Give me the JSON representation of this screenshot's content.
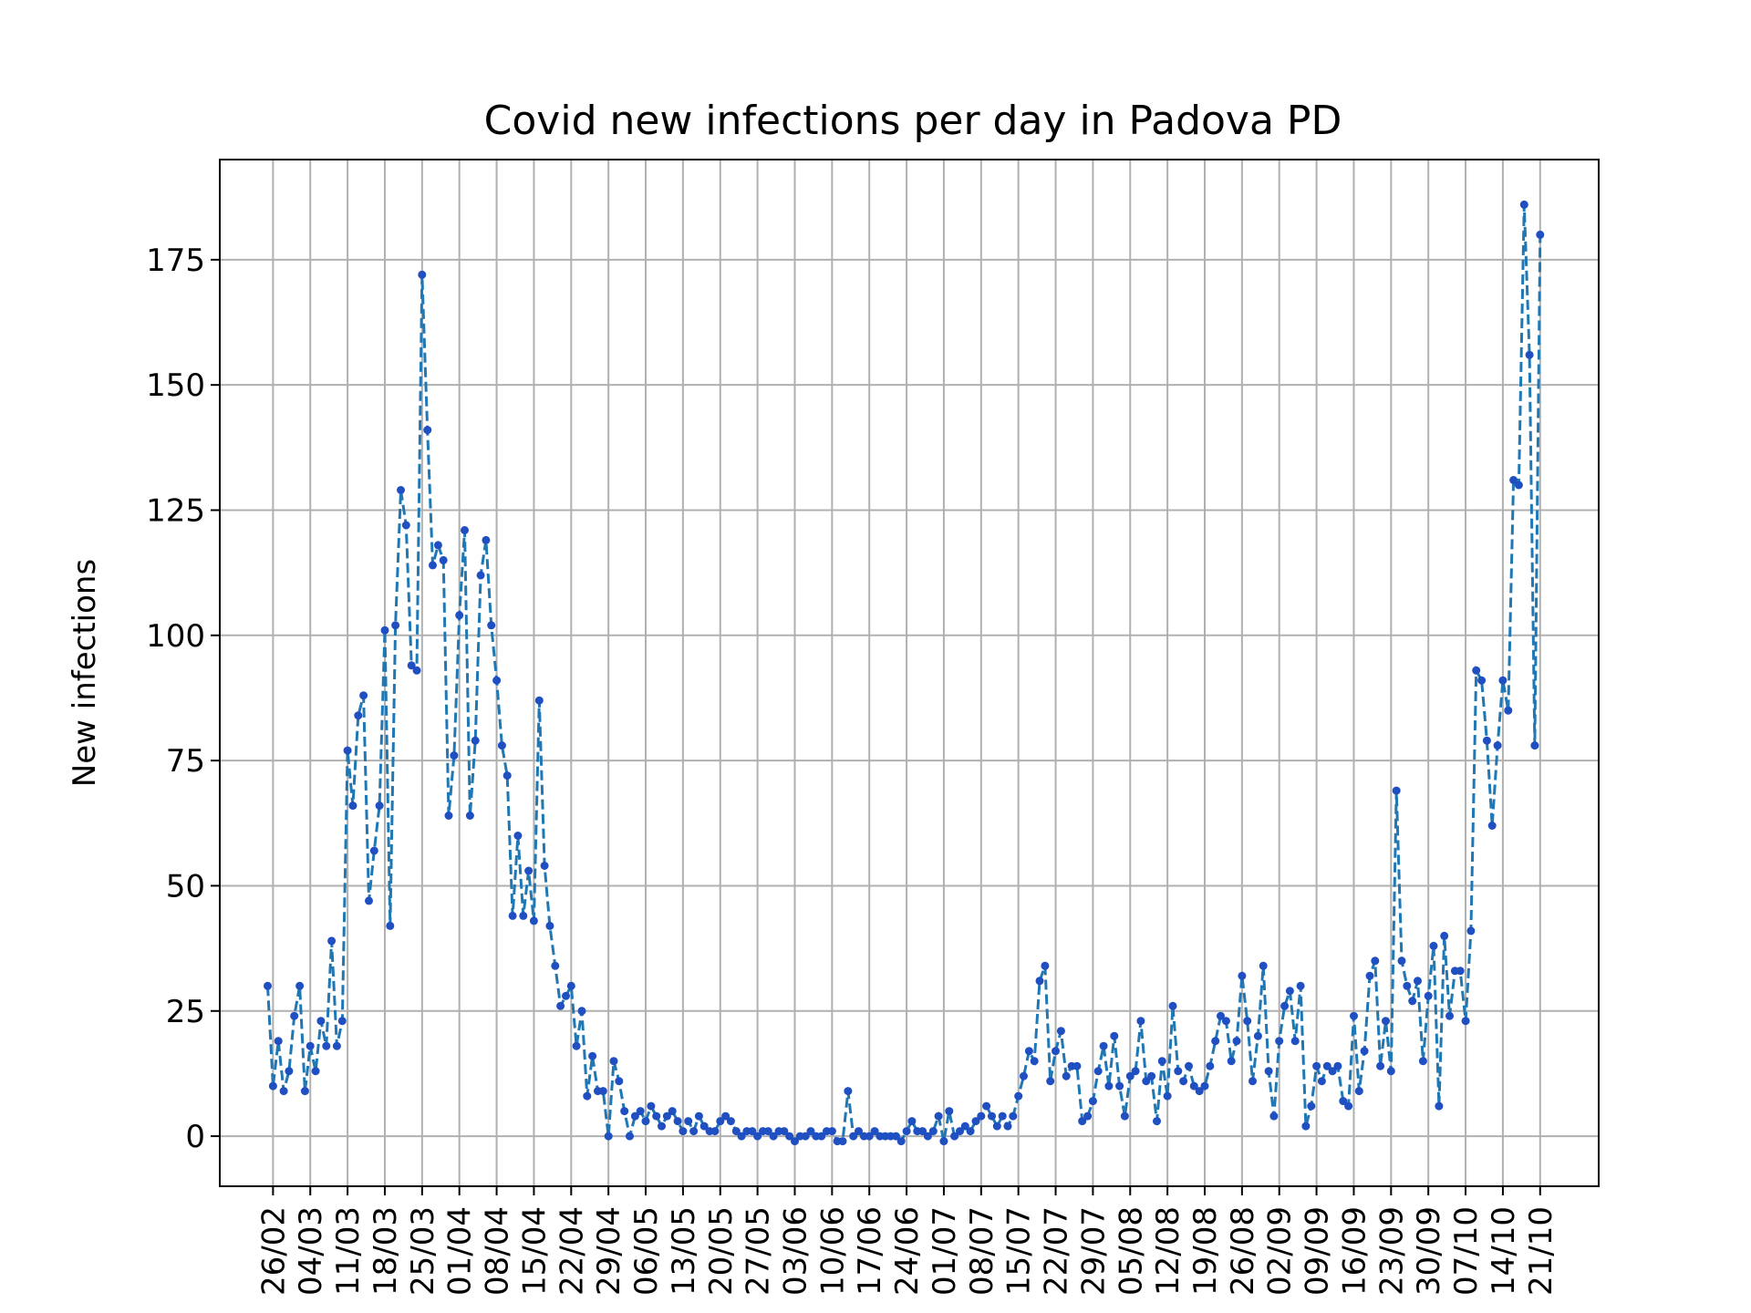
{
  "chart_data": {
    "type": "line",
    "title": "Covid new infections per day in Padova PD",
    "xlabel": "",
    "ylabel": "New infections",
    "ylim": [
      -10,
      195
    ],
    "yticks": [
      0,
      25,
      50,
      75,
      100,
      125,
      150,
      175
    ],
    "xlim": [
      "2020-02-16",
      "2020-11-01"
    ],
    "grid": true,
    "xticks": [
      {
        "date": "2020-02-26",
        "label": "26/02"
      },
      {
        "date": "2020-03-04",
        "label": "04/03"
      },
      {
        "date": "2020-03-11",
        "label": "11/03"
      },
      {
        "date": "2020-03-18",
        "label": "18/03"
      },
      {
        "date": "2020-03-25",
        "label": "25/03"
      },
      {
        "date": "2020-04-01",
        "label": "01/04"
      },
      {
        "date": "2020-04-08",
        "label": "08/04"
      },
      {
        "date": "2020-04-15",
        "label": "15/04"
      },
      {
        "date": "2020-04-22",
        "label": "22/04"
      },
      {
        "date": "2020-04-29",
        "label": "29/04"
      },
      {
        "date": "2020-05-06",
        "label": "06/05"
      },
      {
        "date": "2020-05-13",
        "label": "13/05"
      },
      {
        "date": "2020-05-20",
        "label": "20/05"
      },
      {
        "date": "2020-05-27",
        "label": "27/05"
      },
      {
        "date": "2020-06-03",
        "label": "03/06"
      },
      {
        "date": "2020-06-10",
        "label": "10/06"
      },
      {
        "date": "2020-06-17",
        "label": "17/06"
      },
      {
        "date": "2020-06-24",
        "label": "24/06"
      },
      {
        "date": "2020-07-01",
        "label": "01/07"
      },
      {
        "date": "2020-07-08",
        "label": "08/07"
      },
      {
        "date": "2020-07-15",
        "label": "15/07"
      },
      {
        "date": "2020-07-22",
        "label": "22/07"
      },
      {
        "date": "2020-07-29",
        "label": "29/07"
      },
      {
        "date": "2020-08-05",
        "label": "05/08"
      },
      {
        "date": "2020-08-12",
        "label": "12/08"
      },
      {
        "date": "2020-08-19",
        "label": "19/08"
      },
      {
        "date": "2020-08-26",
        "label": "26/08"
      },
      {
        "date": "2020-09-02",
        "label": "02/09"
      },
      {
        "date": "2020-09-09",
        "label": "09/09"
      },
      {
        "date": "2020-09-16",
        "label": "16/09"
      },
      {
        "date": "2020-09-23",
        "label": "23/09"
      },
      {
        "date": "2020-09-30",
        "label": "30/09"
      },
      {
        "date": "2020-10-07",
        "label": "07/10"
      },
      {
        "date": "2020-10-14",
        "label": "14/10"
      },
      {
        "date": "2020-10-21",
        "label": "21/10"
      }
    ],
    "series": [
      {
        "name": "",
        "color": "#1f77b4",
        "marker_color": "#1f4fc0",
        "start_date": "2020-02-25",
        "values": [
          30,
          10,
          19,
          9,
          13,
          24,
          30,
          9,
          18,
          13,
          23,
          18,
          39,
          18,
          23,
          77,
          66,
          84,
          88,
          47,
          57,
          66,
          101,
          42,
          102,
          129,
          122,
          94,
          93,
          172,
          141,
          114,
          118,
          115,
          64,
          76,
          104,
          121,
          64,
          79,
          112,
          119,
          102,
          91,
          78,
          72,
          44,
          60,
          44,
          53,
          43,
          87,
          54,
          42,
          34,
          26,
          28,
          30,
          18,
          25,
          8,
          16,
          9,
          9,
          0,
          15,
          11,
          5,
          0,
          4,
          5,
          3,
          6,
          4,
          2,
          4,
          5,
          3,
          1,
          3,
          1,
          4,
          2,
          1,
          1,
          3,
          4,
          3,
          1,
          0,
          1,
          1,
          0,
          1,
          1,
          0,
          1,
          1,
          0,
          -1,
          0,
          0,
          1,
          0,
          0,
          1,
          1,
          -1,
          -1,
          9,
          0,
          1,
          0,
          0,
          1,
          0,
          0,
          0,
          0,
          -1,
          1,
          3,
          1,
          1,
          0,
          1,
          4,
          -1,
          5,
          0,
          1,
          2,
          1,
          3,
          4,
          6,
          4,
          2,
          4,
          2,
          4,
          8,
          12,
          17,
          15,
          31,
          34,
          11,
          17,
          21,
          12,
          14,
          14,
          3,
          4,
          7,
          13,
          18,
          10,
          20,
          10,
          4,
          12,
          13,
          23,
          11,
          12,
          3,
          15,
          8,
          26,
          13,
          11,
          14,
          10,
          9,
          10,
          14,
          19,
          24,
          23,
          15,
          19,
          32,
          23,
          11,
          20,
          34,
          13,
          4,
          19,
          26,
          29,
          19,
          30,
          2,
          6,
          14,
          11,
          14,
          13,
          14,
          7,
          6,
          24,
          9,
          17,
          32,
          35,
          14,
          23,
          13,
          69,
          35,
          30,
          27,
          31,
          15,
          28,
          38,
          6,
          40,
          24,
          33,
          33,
          23,
          41,
          93,
          91,
          79,
          62,
          78,
          91,
          85,
          131,
          130,
          186,
          156,
          78,
          180
        ]
      }
    ]
  }
}
